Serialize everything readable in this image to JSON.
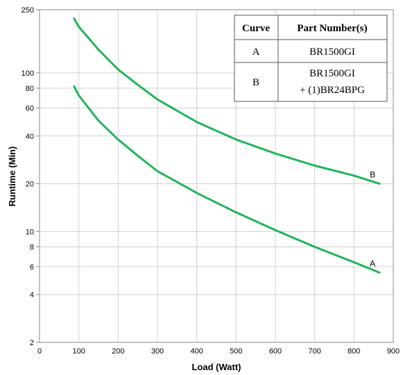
{
  "chart_data": {
    "type": "line",
    "title": "",
    "xlabel": "Load (Watt)",
    "ylabel": "Runtime (Min)",
    "xlim": [
      0,
      900
    ],
    "ylim": [
      2,
      250
    ],
    "yscale": "log",
    "grid": true,
    "x_ticks": [
      "0",
      "100",
      "200",
      "300",
      "400",
      "500",
      "600",
      "700",
      "800",
      "900"
    ],
    "y_ticks": [
      {
        "value": 2,
        "label": "2"
      },
      {
        "value": 4,
        "label": "4"
      },
      {
        "value": 6,
        "label": "6"
      },
      {
        "value": 8,
        "label": "8"
      },
      {
        "value": 10,
        "label": "10"
      },
      {
        "value": 20,
        "label": "20"
      },
      {
        "value": 40,
        "label": "40"
      },
      {
        "value": 60,
        "label": "60"
      },
      {
        "value": 80,
        "label": "80"
      },
      {
        "value": 100,
        "label": "100"
      },
      {
        "value": 250,
        "label": "250"
      }
    ],
    "series": [
      {
        "name": "A",
        "color": "#22b35a",
        "points": [
          [
            88,
            82
          ],
          [
            100,
            72
          ],
          [
            150,
            50
          ],
          [
            200,
            38
          ],
          [
            250,
            30
          ],
          [
            300,
            24
          ],
          [
            400,
            17.5
          ],
          [
            500,
            13.2
          ],
          [
            600,
            10.2
          ],
          [
            700,
            8
          ],
          [
            800,
            6.4
          ],
          [
            865,
            5.5
          ]
        ]
      },
      {
        "name": "B",
        "color": "#22b35a",
        "points": [
          [
            88,
            220
          ],
          [
            100,
            195
          ],
          [
            150,
            140
          ],
          [
            200,
            105
          ],
          [
            250,
            84
          ],
          [
            300,
            68
          ],
          [
            400,
            49
          ],
          [
            500,
            38
          ],
          [
            600,
            31
          ],
          [
            700,
            26
          ],
          [
            800,
            22.5
          ],
          [
            865,
            20
          ]
        ]
      }
    ],
    "legend_table": {
      "headers": [
        "Curve",
        "Part Number(s)"
      ],
      "rows": [
        [
          "A",
          "BR1500GI"
        ],
        [
          "B",
          "BR1500GI",
          "+ (1)BR24BPG"
        ]
      ]
    }
  }
}
